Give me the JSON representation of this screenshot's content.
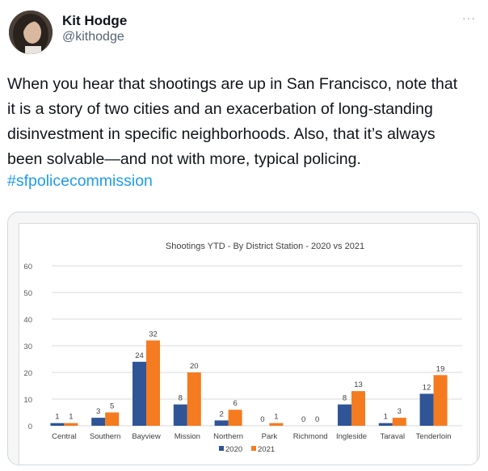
{
  "author": {
    "name": "Kit Hodge",
    "handle": "@kithodge",
    "avatar_icon": "profile-photo"
  },
  "more_icon": "ellipsis-icon",
  "tweet": {
    "lines": [
      "When you hear that shootings are up in San Francisco, note that",
      "it is a story of two cities and an exacerbation of long-standing",
      "disinvestment in specific neighborhoods. Also, that it’s always",
      "been solvable—and not with more, typical policing."
    ],
    "hashtag": "#sfpolicecommission"
  },
  "colors": {
    "series_2020": "#2f5597",
    "series_2021": "#f47b20",
    "hashtag": "#1d9bf0"
  },
  "chart_data": {
    "type": "bar",
    "title": "Shootings YTD - By District Station - 2020 vs 2021",
    "xlabel": "",
    "ylabel": "",
    "ylim": [
      0,
      60
    ],
    "yticks": [
      0,
      10,
      20,
      30,
      40,
      50,
      60
    ],
    "grid": true,
    "legend_position": "bottom",
    "categories": [
      "Central",
      "Southern",
      "Bayview",
      "Mission",
      "Northern",
      "Park",
      "Richmond",
      "Ingleside",
      "Taraval",
      "Tenderloin"
    ],
    "series": [
      {
        "name": "2020",
        "values": [
          1,
          3,
          24,
          8,
          2,
          0,
          0,
          8,
          1,
          12
        ]
      },
      {
        "name": "2021",
        "values": [
          1,
          5,
          32,
          20,
          6,
          1,
          0,
          13,
          3,
          19
        ]
      }
    ]
  }
}
